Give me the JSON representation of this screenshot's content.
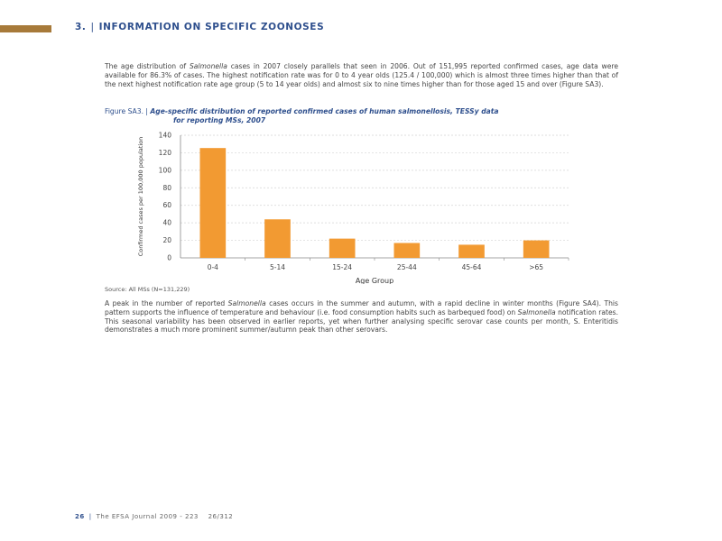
{
  "header": {
    "section_number": "3.",
    "section_title": "INFORMATION ON SPECIFIC ZOONOSES",
    "accent_color": "#a77a3a",
    "title_color": "#2e4f8d"
  },
  "paragraph1": {
    "t1": "The age distribution of ",
    "em1": "Salmonella",
    "t2": " cases in 2007 closely parallels that seen in 2006. Out of 151,995 reported confirmed cases, age data were available for 86.3% of cases. The highest notification rate was for 0 to 4 year olds (125.4 / 100,000) which is almost three times higher than that of the next highest notification rate age group (5 to 14 year olds) and almost six to nine times higher than for those aged 15 and over (Figure SA3)."
  },
  "figure": {
    "label": "Figure SA3.",
    "title_line1": "Age-specific distribution of reported confirmed cases of human salmonellosis, TESSy data",
    "title_line2": "for reporting MSs, 2007"
  },
  "chart_data": {
    "type": "bar",
    "categories": [
      "0-4",
      "5-14",
      "15-24",
      "25-44",
      "45-64",
      ">65"
    ],
    "values": [
      125.4,
      44,
      22,
      17,
      15,
      20
    ],
    "xlabel": "Age Group",
    "ylabel": "Confirmed cases per 100,000 population",
    "ylim": [
      0,
      140
    ],
    "yticks": [
      0,
      20,
      40,
      60,
      80,
      100,
      120,
      140
    ],
    "grid": true,
    "bar_color": "#f29a32"
  },
  "source": "Source: All MSs (N=131,229)",
  "paragraph2": {
    "t1": "A peak in the number of reported ",
    "em1": "Salmonella",
    "t2": " cases occurs in the summer and autumn, with a rapid decline in winter months (Figure SA4). This pattern supports the influence of temperature and behaviour (i.e. food consumption habits such as barbequed food) on ",
    "em2": "Salmonella",
    "t3": " notification rates. This seasonal variability has been observed in earlier reports, yet when further analysing specific serovar case counts per month, S. Enteritidis demonstrates a much more prominent summer/autumn peak than other serovars."
  },
  "footer": {
    "page_number": "26",
    "journal": "The EFSA Journal 2009 - 223",
    "page_count": "26/312"
  }
}
